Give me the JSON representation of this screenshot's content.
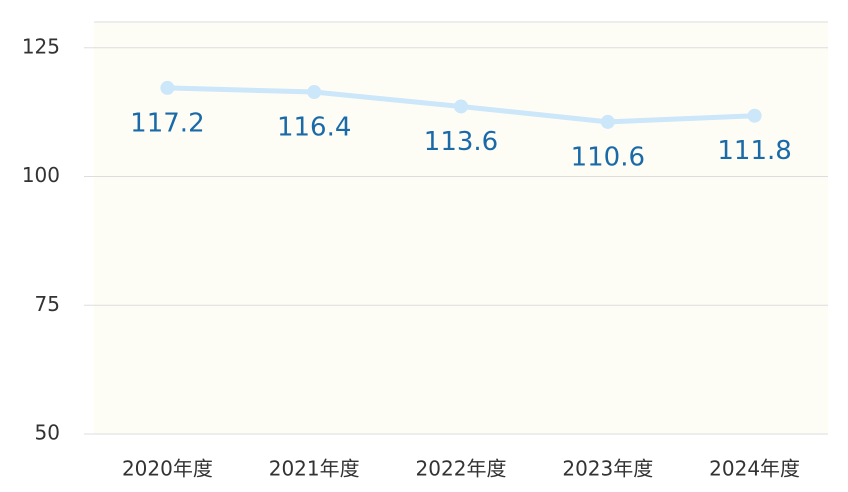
{
  "chart_data": {
    "type": "line",
    "categories": [
      "2020年度",
      "2021年度",
      "2022年度",
      "2023年度",
      "2024年度"
    ],
    "series": [
      {
        "name": "value",
        "color": "#cce6fa",
        "values": [
          117.2,
          116.4,
          113.6,
          110.6,
          111.8
        ]
      }
    ],
    "label_color": "#1a6aa8",
    "ylim": [
      50,
      130
    ],
    "yticks": [
      50,
      75,
      100,
      125
    ],
    "grid": true
  }
}
